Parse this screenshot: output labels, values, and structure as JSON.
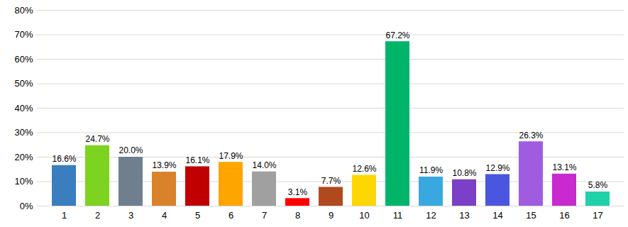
{
  "chart_data": {
    "type": "bar",
    "categories": [
      "1",
      "2",
      "3",
      "4",
      "5",
      "6",
      "7",
      "8",
      "9",
      "10",
      "11",
      "12",
      "13",
      "14",
      "15",
      "16",
      "17"
    ],
    "values": [
      16.6,
      24.7,
      20.0,
      13.9,
      16.1,
      17.9,
      14.0,
      3.1,
      7.7,
      12.6,
      67.2,
      11.9,
      10.8,
      12.9,
      26.3,
      13.1,
      5.8
    ],
    "value_labels": [
      "16.6%",
      "24.7%",
      "20.0%",
      "13.9%",
      "16.1%",
      "17.9%",
      "14.0%",
      "3.1%",
      "7.7%",
      "12.6%",
      "67.2%",
      "11.9%",
      "10.8%",
      "12.9%",
      "26.3%",
      "13.1%",
      "5.8%"
    ],
    "colors": [
      "#3a7ebf",
      "#7ed321",
      "#6f7f8f",
      "#d9822b",
      "#c00000",
      "#ffa500",
      "#a0a0a0",
      "#ff0000",
      "#b04a1e",
      "#ffd700",
      "#00b56a",
      "#3aa8e0",
      "#7b3fc8",
      "#4a56e0",
      "#a05ce0",
      "#c82ad0",
      "#20d0a8"
    ],
    "ylim": [
      0,
      80
    ],
    "yticks": [
      {
        "value": 0,
        "label": "0%"
      },
      {
        "value": 10,
        "label": "10%"
      },
      {
        "value": 20,
        "label": "20%"
      },
      {
        "value": 30,
        "label": "30%"
      },
      {
        "value": 40,
        "label": "40%"
      },
      {
        "value": 50,
        "label": "50%"
      },
      {
        "value": 60,
        "label": "60%"
      },
      {
        "value": 70,
        "label": "70%"
      },
      {
        "value": 80,
        "label": "80%"
      }
    ],
    "grid": true,
    "data_labels": true
  }
}
